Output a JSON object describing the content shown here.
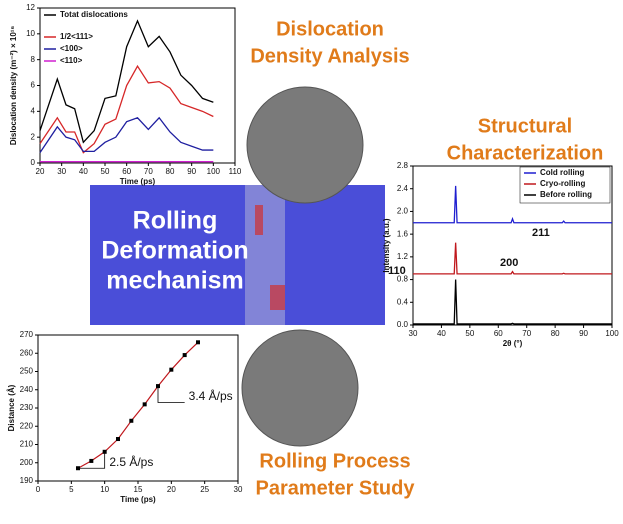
{
  "headings": [
    [
      "Dislocation",
      "Density Analysis"
    ],
    [
      "Structural",
      "Characterization"
    ],
    [
      "Rolling Process",
      "Parameter Study"
    ]
  ],
  "center_label": [
    "Rolling",
    "Deformation",
    "mechanism"
  ],
  "chart_data": [
    {
      "type": "line",
      "xlabel": "Time (ps)",
      "ylabel": "Dislocation density (m⁻²) × 10¹⁶",
      "x": [
        20,
        28,
        32,
        36,
        40,
        45,
        50,
        55,
        60,
        65,
        70,
        75,
        80,
        85,
        90,
        95,
        100
      ],
      "series": [
        {
          "name": "Totat dislocations",
          "color": "#000000",
          "values": [
            2.5,
            6.5,
            4.5,
            4.2,
            1.6,
            2.5,
            5.0,
            5.2,
            9.0,
            11.0,
            9.0,
            9.8,
            8.6,
            6.8,
            6.0,
            5.0,
            4.7
          ]
        },
        {
          "name": "1/2<111>",
          "color": "#d62728",
          "values": [
            1.5,
            3.5,
            2.4,
            2.4,
            0.8,
            1.5,
            3.0,
            3.4,
            6.0,
            7.5,
            6.2,
            6.3,
            5.8,
            4.6,
            4.3,
            4.0,
            3.6
          ]
        },
        {
          "name": "<100>",
          "color": "#1f1fa0",
          "values": [
            0.8,
            2.8,
            2.0,
            1.8,
            0.9,
            0.9,
            1.6,
            2.0,
            3.2,
            3.5,
            2.6,
            3.5,
            2.4,
            1.6,
            1.3,
            1.0,
            1.0
          ]
        },
        {
          "name": "<110>",
          "color": "#d020d0",
          "values": [
            0.1,
            0.1,
            0.1,
            0.1,
            0.1,
            0.1,
            0.1,
            0.1,
            0.1,
            0.1,
            0.1,
            0.1,
            0.1,
            0.1,
            0.1,
            0.1,
            0.1
          ]
        }
      ],
      "xlim": [
        20,
        110
      ],
      "xticks": [
        20,
        30,
        40,
        50,
        60,
        70,
        80,
        90,
        100,
        110
      ],
      "ylim": [
        0,
        12
      ],
      "yticks": [
        0,
        2,
        4,
        6,
        8,
        10,
        12
      ],
      "legend": "upper left"
    },
    {
      "type": "line",
      "xlabel": "2θ (°)",
      "ylabel": "Intensity (a.u.)",
      "x": [
        30,
        44.5,
        45,
        45.5,
        64.5,
        65,
        65.5,
        82.5,
        83,
        83.5,
        100
      ],
      "series": [
        {
          "name": "Cold rolling",
          "color": "#1f1fd0",
          "values": [
            1.8,
            1.8,
            2.45,
            1.8,
            1.8,
            1.87,
            1.8,
            1.8,
            1.83,
            1.8,
            1.8
          ]
        },
        {
          "name": "Cryo-rolling",
          "color": "#c0181d",
          "values": [
            0.9,
            0.9,
            1.45,
            0.9,
            0.9,
            0.94,
            0.9,
            0.9,
            0.91,
            0.9,
            0.9
          ]
        },
        {
          "name": "Before rolling",
          "color": "#000000",
          "values": [
            0.02,
            0.02,
            0.8,
            0.02,
            0.02,
            0.03,
            0.02,
            0.02,
            0.02,
            0.02,
            0.02
          ]
        }
      ],
      "annotations": [
        "110",
        "200",
        "211"
      ],
      "xlim": [
        30,
        100
      ],
      "xticks": [
        30,
        40,
        50,
        60,
        70,
        80,
        90,
        100
      ],
      "ylim": [
        0,
        2.8
      ],
      "yticks": [
        {
          "value": 0,
          "label": "0.0"
        },
        0.4,
        0.8,
        1.2,
        1.6,
        {
          "value": 2,
          "label": "2.0"
        },
        2.4,
        2.8
      ],
      "legend": "upper right"
    },
    {
      "type": "scatter",
      "xlabel": "Time (ps)",
      "ylabel": "Distance (Å)",
      "x": [
        6,
        8,
        10,
        12,
        14,
        16,
        18,
        20,
        22,
        24
      ],
      "values": [
        197,
        201,
        206,
        213,
        223,
        232,
        242,
        251,
        259,
        266
      ],
      "color": "#000000",
      "line_color": "#c0181d",
      "annotations": [
        "2.5 Å/ps",
        "3.4 Å/ps"
      ],
      "xlim": [
        0,
        30
      ],
      "xticks": [
        0,
        5,
        10,
        15,
        20,
        25,
        30
      ],
      "ylim": [
        190,
        270
      ],
      "yticks": [
        190,
        200,
        210,
        220,
        230,
        240,
        250,
        260,
        270
      ]
    }
  ]
}
